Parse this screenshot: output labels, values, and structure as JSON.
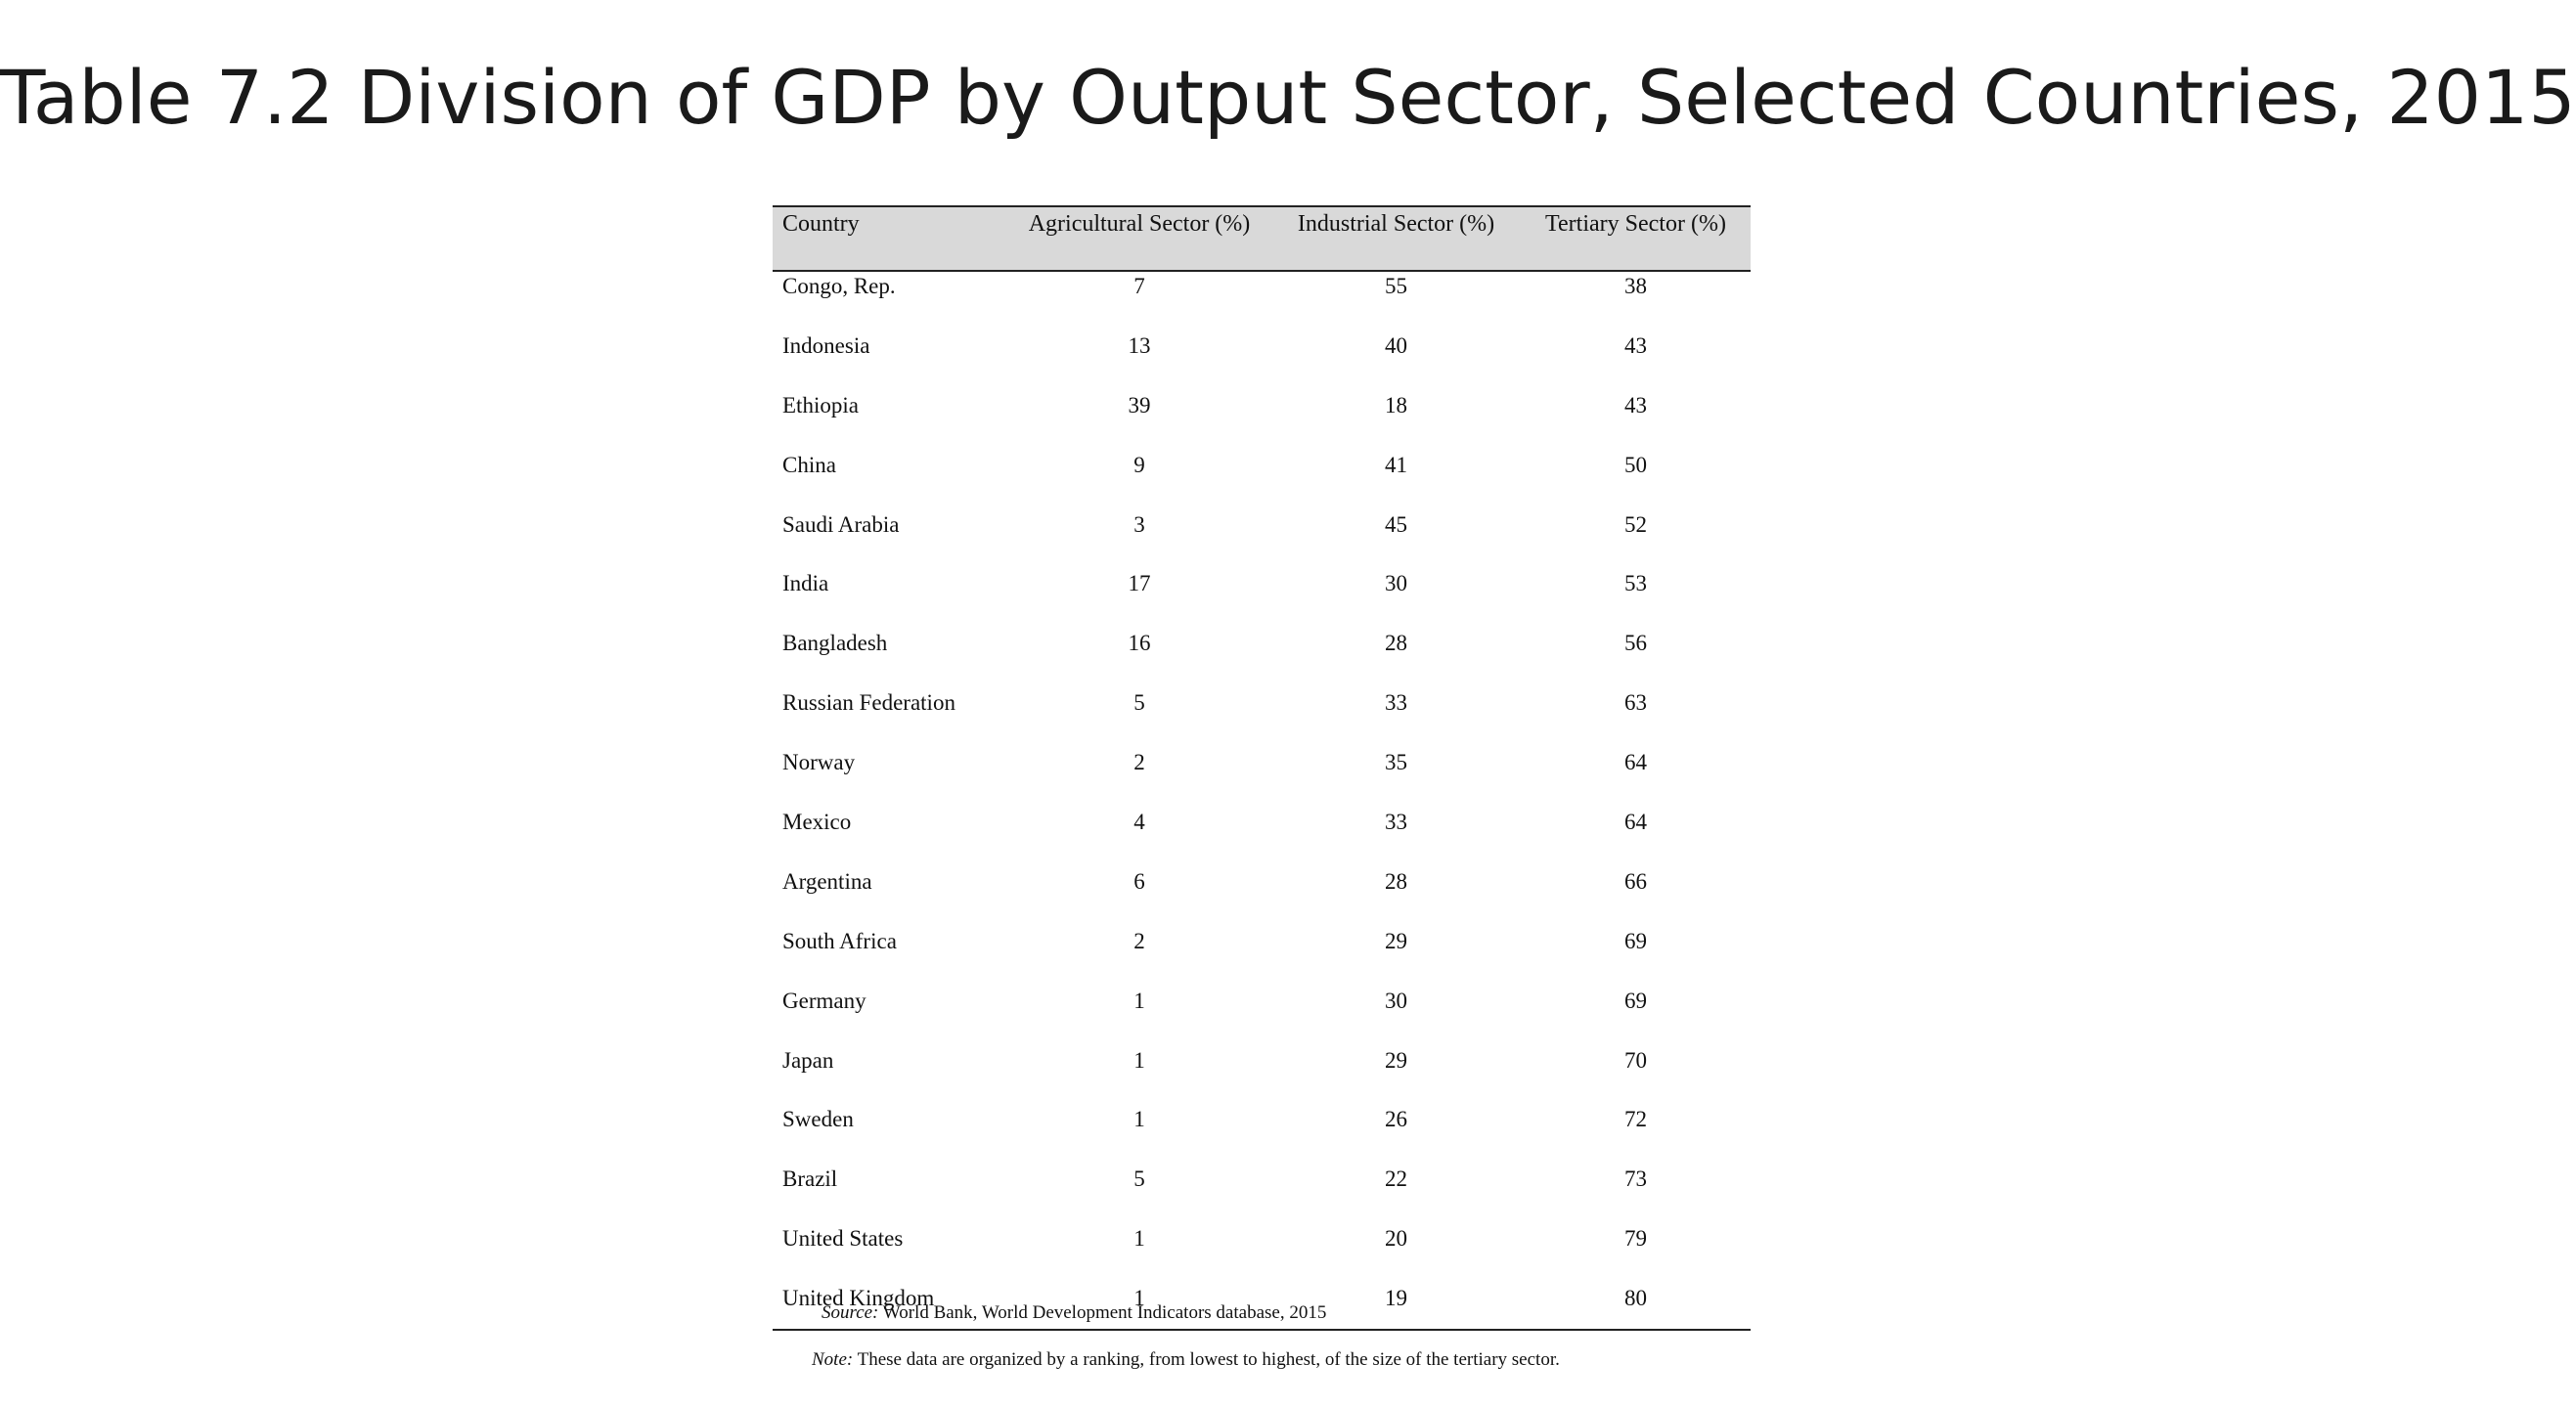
{
  "slide": {
    "title": "Table 7.2 Division of GDP by Output Sector, Selected Countries, 2015"
  },
  "table": {
    "headers": {
      "country": "Country",
      "agricultural": "Agricultural Sector (%)",
      "industrial": "Industrial Sector (%)",
      "tertiary": "Tertiary Sector (%)"
    },
    "rows": [
      {
        "country": "Congo, Rep.",
        "agricultural": "7",
        "industrial": "55",
        "tertiary": "38"
      },
      {
        "country": "Indonesia",
        "agricultural": "13",
        "industrial": "40",
        "tertiary": "43"
      },
      {
        "country": "Ethiopia",
        "agricultural": "39",
        "industrial": "18",
        "tertiary": "43"
      },
      {
        "country": "China",
        "agricultural": "9",
        "industrial": "41",
        "tertiary": "50"
      },
      {
        "country": "Saudi Arabia",
        "agricultural": "3",
        "industrial": "45",
        "tertiary": "52"
      },
      {
        "country": "India",
        "agricultural": "17",
        "industrial": "30",
        "tertiary": "53"
      },
      {
        "country": "Bangladesh",
        "agricultural": "16",
        "industrial": "28",
        "tertiary": "56"
      },
      {
        "country": "Russian Federation",
        "agricultural": "5",
        "industrial": "33",
        "tertiary": "63"
      },
      {
        "country": "Norway",
        "agricultural": "2",
        "industrial": "35",
        "tertiary": "64"
      },
      {
        "country": "Mexico",
        "agricultural": "4",
        "industrial": "33",
        "tertiary": "64"
      },
      {
        "country": "Argentina",
        "agricultural": "6",
        "industrial": "28",
        "tertiary": "66"
      },
      {
        "country": "South Africa",
        "agricultural": "2",
        "industrial": "29",
        "tertiary": "69"
      },
      {
        "country": "Germany",
        "agricultural": "1",
        "industrial": "30",
        "tertiary": "69"
      },
      {
        "country": "Japan",
        "agricultural": "1",
        "industrial": "29",
        "tertiary": "70"
      },
      {
        "country": "Sweden",
        "agricultural": "1",
        "industrial": "26",
        "tertiary": "72"
      },
      {
        "country": "Brazil",
        "agricultural": "5",
        "industrial": "22",
        "tertiary": "73"
      },
      {
        "country": "United States",
        "agricultural": "1",
        "industrial": "20",
        "tertiary": "79"
      },
      {
        "country": "United Kingdom",
        "agricultural": "1",
        "industrial": "19",
        "tertiary": "80"
      }
    ]
  },
  "footnotes": {
    "source_label": "Source:",
    "source_text": " World Bank, World Development Indicators database, 2015",
    "note_label": "Note:",
    "note_text": " These data are organized by a ranking, from lowest to highest, of the size of the tertiary sector."
  }
}
